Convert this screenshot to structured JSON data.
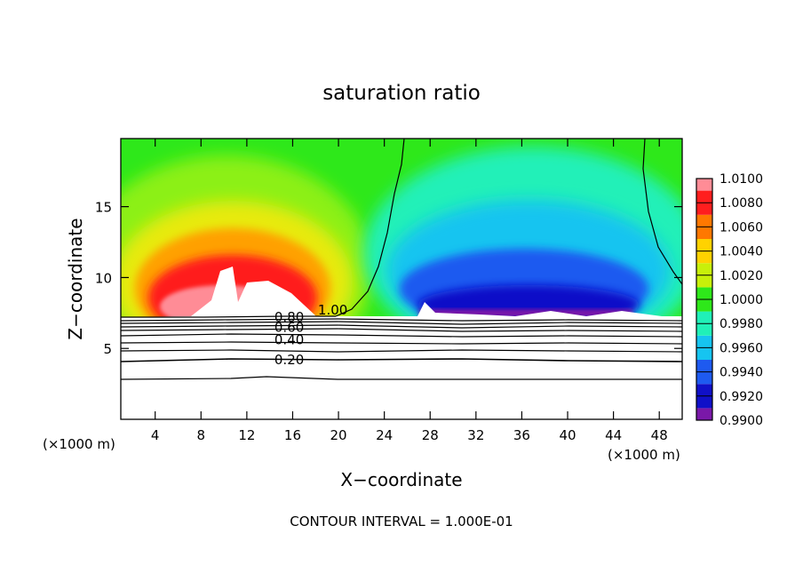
{
  "chart_data": {
    "type": "heatmap",
    "title": "saturation ratio",
    "xlabel": "X−coordinate",
    "ylabel": "Z−coordinate",
    "x_unit_left": "(×1000 m)",
    "x_unit_right": "(×1000 m)",
    "footer": "CONTOUR INTERVAL = 1.000E-01",
    "xlim": [
      1,
      50
    ],
    "ylim": [
      0,
      19.8
    ],
    "x_ticks": [
      4,
      8,
      12,
      16,
      20,
      24,
      28,
      32,
      36,
      40,
      44,
      48
    ],
    "x_tick_labels": [
      "4",
      "8",
      "12",
      "16",
      "20",
      "24",
      "28",
      "32",
      "36",
      "40",
      "44",
      "48"
    ],
    "y_ticks": [
      5,
      10,
      15
    ],
    "y_tick_labels": [
      "5",
      "10",
      "15"
    ],
    "colorbar": {
      "levels": [
        0.99,
        0.992,
        0.994,
        0.996,
        0.998,
        1.0,
        1.002,
        1.004,
        1.006,
        1.008,
        1.01
      ],
      "labels": [
        "0.9900",
        "0.9920",
        "0.9940",
        "0.9960",
        "0.9980",
        "1.0000",
        "1.0020",
        "1.0040",
        "1.0060",
        "1.0080",
        "1.0100"
      ],
      "colors": [
        "#7a18a8",
        "#1010c8",
        "#1e5af0",
        "#16c4f0",
        "#20f0b8",
        "#2ee81a",
        "#c8f00a",
        "#ffd200",
        "#ff7800",
        "#ff1e1e",
        "#ff8c96"
      ]
    },
    "contour_labels": [
      {
        "text": "1.00",
        "x": 19.5,
        "z": 7.7
      },
      {
        "text": "0.80",
        "x": 15.7,
        "z": 7.2
      },
      {
        "text": "0.60",
        "x": 15.7,
        "z": 6.5
      },
      {
        "text": "0.40",
        "x": 15.7,
        "z": 5.6
      },
      {
        "text": "0.20",
        "x": 15.7,
        "z": 4.2
      }
    ],
    "cloud_base_z": 7.2,
    "features": {
      "supersaturated_region_x": [
        1,
        20
      ],
      "subsaturated_region_x": [
        23,
        46.5
      ],
      "saturation_boundary_x": [
        23.5,
        46.5
      ]
    }
  }
}
